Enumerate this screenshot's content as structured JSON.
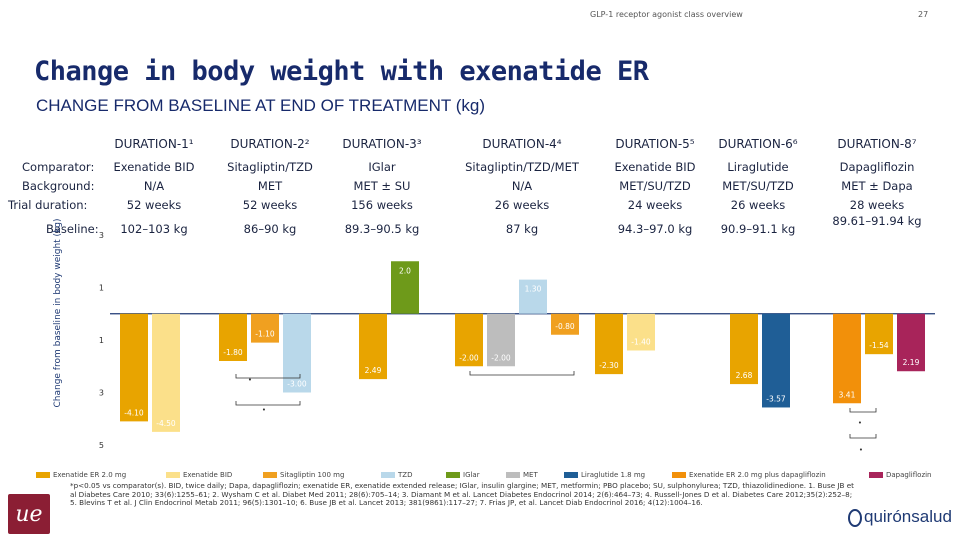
{
  "header": {
    "subject": "GLP-1 receptor agonist class overview",
    "page_number": "27"
  },
  "title": "Change in body weight with exenatide ER",
  "subtitle": "CHANGE FROM BASELINE AT END OF TREATMENT (kg)",
  "table": {
    "row_labels": {
      "comparator": "Comparator:",
      "background": "Background:",
      "trial_duration": "Trial duration:",
      "baseline": "Baseline:"
    },
    "studies": [
      {
        "name": "DURATION-1¹",
        "comparator": "Exenatide BID",
        "background": "N/A",
        "duration": "52 weeks",
        "baseline": "102–103 kg"
      },
      {
        "name": "DURATION-2²",
        "comparator": "Sitagliptin/TZD",
        "background": "MET",
        "duration": "52 weeks",
        "baseline": "86–90 kg"
      },
      {
        "name": "DURATION-3³",
        "comparator": "IGlar",
        "background": "MET ± SU",
        "duration": "156 weeks",
        "baseline": "89.3–90.5 kg"
      },
      {
        "name": "DURATION-4⁴",
        "comparator": "Sitagliptin/TZD/MET",
        "background": "N/A",
        "duration": "26 weeks",
        "baseline": "87 kg"
      },
      {
        "name": "DURATION-5⁵",
        "comparator": "Exenatide BID",
        "background": "MET/SU/TZD",
        "duration": "24 weeks",
        "baseline": "94.3–97.0 kg"
      },
      {
        "name": "DURATION-6⁶",
        "comparator": "Liraglutide",
        "background": "MET/SU/TZD",
        "duration": "26 weeks",
        "baseline": "90.9–91.1 kg"
      },
      {
        "name": "DURATION-8⁷",
        "comparator": "Dapagliflozin",
        "background": "MET ± Dapa",
        "duration": "28 weeks",
        "baseline": "89.61–91.94 kg"
      }
    ]
  },
  "chart_data": {
    "type": "bar",
    "ylabel": "Change from baseline in body weight (kg)",
    "ylim": [
      -5,
      3
    ],
    "yticks": [
      {
        "value": 3,
        "label": "3"
      },
      {
        "value": 1,
        "label": "1"
      },
      {
        "value": -1,
        "label": "1"
      },
      {
        "value": -3,
        "label": "3"
      },
      {
        "value": -5,
        "label": "5"
      }
    ],
    "groups": [
      {
        "study": "DURATION-1",
        "bars": [
          {
            "series": "Exenatide ER 2.0 mg",
            "value": -4.1,
            "label": "-4.10"
          },
          {
            "series": "Exenatide BID",
            "value": -4.5,
            "label": "-4.50"
          }
        ]
      },
      {
        "study": "DURATION-2",
        "bars": [
          {
            "series": "Exenatide ER 2.0 mg",
            "value": -1.8,
            "label": "-1.80"
          },
          {
            "series": "Sitagliptin 100 mg",
            "value": -1.1,
            "label": "-1.10"
          },
          {
            "series": "TZD",
            "value": -3.0,
            "label": "-3.00"
          }
        ]
      },
      {
        "study": "DURATION-3",
        "bars": [
          {
            "series": "Exenatide ER 2.0 mg",
            "value": -2.49,
            "label": "2.49"
          },
          {
            "series": "IGlar",
            "value": 2.0,
            "label": "2.0"
          }
        ]
      },
      {
        "study": "DURATION-4",
        "bars": [
          {
            "series": "Exenatide ER 2.0 mg",
            "value": -2.0,
            "label": "-2.00"
          },
          {
            "series": "MET",
            "value": -2.0,
            "label": "-2.00"
          },
          {
            "series": "TZD",
            "value": 1.3,
            "label": "1.30"
          },
          {
            "series": "Sitagliptin 100 mg",
            "value": -0.8,
            "label": "-0.80"
          }
        ]
      },
      {
        "study": "DURATION-5",
        "bars": [
          {
            "series": "Exenatide ER 2.0 mg",
            "value": -2.3,
            "label": "-2.30"
          },
          {
            "series": "Exenatide BID",
            "value": -1.4,
            "label": "-1.40"
          }
        ]
      },
      {
        "study": "DURATION-6",
        "bars": [
          {
            "series": "Exenatide ER 2.0 mg",
            "value": -2.68,
            "label": "2.68"
          },
          {
            "series": "Liraglutide 1.8 mg",
            "value": -3.57,
            "label": "-3.57"
          }
        ]
      },
      {
        "study": "DURATION-8",
        "bars": [
          {
            "series": "Exenatide ER 2.0 mg plus dapagliflozin",
            "value": -3.41,
            "label": "3.41"
          },
          {
            "series": "Exenatide ER 2.0 mg",
            "value": -1.54,
            "label": "-1.54"
          },
          {
            "series": "Dapagliflozin",
            "value": -2.19,
            "label": "2.19"
          }
        ]
      }
    ],
    "legend": [
      {
        "name": "Exenatide ER 2.0 mg",
        "color": "#e8a400"
      },
      {
        "name": "Exenatide BID",
        "color": "#fbe08a"
      },
      {
        "name": "Sitagliptin 100 mg",
        "color": "#f0a020"
      },
      {
        "name": "TZD",
        "color": "#b9d8ea"
      },
      {
        "name": "IGlar",
        "color": "#6e9a1a"
      },
      {
        "name": "MET",
        "color": "#bdbdbd"
      },
      {
        "name": "Liraglutide 1.8 mg",
        "color": "#1f5e96"
      },
      {
        "name": "Exenatide ER 2.0 mg plus dapagliflozin",
        "color": "#f2900a"
      },
      {
        "name": "Dapagliflozin",
        "color": "#a8245a"
      }
    ]
  },
  "footnote": "*p<0.05 vs comparator(s). BID, twice daily; Dapa, dapagliflozin; exenatide ER, exenatide extended release; IGlar, insulin glargine; MET, metformin; PBO placebo; SU, sulphonylurea; TZD, thiazolidinedione. 1. Buse JB et al Diabetes Care 2010; 33(6):1255–61; 2. Wysham C et al. Diabet Med 2011; 28(6):705–14; 3. Diamant M et al. Lancet Diabetes Endocrinol 2014; 2(6):464–73; 4. Russell-Jones D et al. Diabetes Care 2012;35(2):252–8; 5. Blevins T et al. J Clin Endocrinol Metab 2011; 96(5):1301–10; 6. Buse JB et al. Lancet 2013; 381(9861):117–27; 7. Frias JP, et al. Lancet Diab Endocrinol 2016; 4(12):1004–16.",
  "logos": {
    "left": "ue",
    "right": "quirónsalud"
  }
}
